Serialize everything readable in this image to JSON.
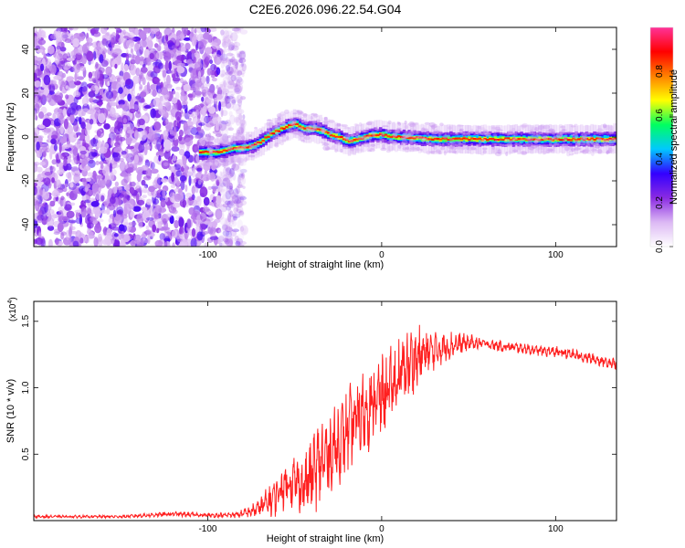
{
  "title": "C2E6.2026.096.22.54.G04",
  "chart_data": [
    {
      "type": "heatmap",
      "xlabel": "Height of straight line (km)",
      "ylabel": "Frequency (Hz)",
      "xlim": [
        -200,
        135
      ],
      "ylim": [
        -50,
        50
      ],
      "xticks": [
        -100,
        0,
        100
      ],
      "xtick_labels": [
        "-100",
        "0",
        "100"
      ],
      "yticks": [
        -40,
        -20,
        0,
        20,
        40
      ],
      "ytick_labels": [
        "-40",
        "-20",
        "0",
        "20",
        "40"
      ],
      "colorbar": {
        "label": "Normalized spectral amplitude",
        "range": [
          0,
          1
        ],
        "ticks": [
          0.0,
          0.2,
          0.4,
          0.6,
          0.8
        ],
        "tick_labels": [
          "0.0",
          "0.2",
          "0.4",
          "0.6",
          "0.8"
        ],
        "colormap": [
          "#ffffff",
          "#dcb8f4",
          "#8a2be2",
          "#3300ff",
          "#00c8ff",
          "#00ff60",
          "#ffff00",
          "#ff8000",
          "#ff0000",
          "#ff3399"
        ]
      },
      "noise_region_x": [
        -200,
        -85
      ],
      "ridge": {
        "x": [
          -105,
          -100,
          -95,
          -90,
          -85,
          -80,
          -75,
          -70,
          -65,
          -60,
          -55,
          -50,
          -45,
          -40,
          -35,
          -30,
          -25,
          -20,
          -15,
          -10,
          -5,
          0,
          5,
          10,
          20,
          30,
          40,
          60,
          80,
          100,
          120,
          135
        ],
        "y": [
          -7,
          -7,
          -7,
          -6,
          -5,
          -5,
          -4,
          -2,
          1,
          3,
          5,
          6,
          4,
          4,
          3,
          1,
          0,
          -2,
          -1,
          0,
          1,
          1,
          0,
          0,
          -0.5,
          -1,
          -1,
          -1,
          -1,
          -1,
          -1,
          -1
        ]
      }
    },
    {
      "type": "line",
      "xlabel": "Height of straight line (km)",
      "ylabel": "SNR (10 * v/v)",
      "y_multiplier": "(x10",
      "y_multiplier_exp": "4",
      "y_multiplier_close": ")",
      "xlim": [
        -200,
        135
      ],
      "ylim": [
        0,
        1.65
      ],
      "xticks": [
        -100,
        0,
        100
      ],
      "xtick_labels": [
        "-100",
        "0",
        "100"
      ],
      "yticks": [
        0.5,
        1.0,
        1.5
      ],
      "ytick_labels": [
        "0.5",
        "1.0",
        "1.5"
      ],
      "series": [
        {
          "color": "#ff2020",
          "envelope": {
            "x": [
              -200,
              -150,
              -120,
              -100,
              -90,
              -80,
              -75,
              -70,
              -65,
              -60,
              -55,
              -50,
              -45,
              -40,
              -35,
              -30,
              -25,
              -20,
              -15,
              -10,
              -5,
              0,
              5,
              10,
              15,
              20,
              25,
              30,
              35,
              40,
              50,
              60,
              70,
              80,
              90,
              100,
              110,
              120,
              135
            ],
            "mean": [
              0.03,
              0.03,
              0.05,
              0.04,
              0.04,
              0.05,
              0.07,
              0.1,
              0.14,
              0.2,
              0.28,
              0.3,
              0.25,
              0.35,
              0.45,
              0.5,
              0.58,
              0.66,
              0.75,
              0.82,
              0.88,
              0.94,
              1.0,
              1.08,
              1.18,
              1.22,
              1.26,
              1.28,
              1.3,
              1.32,
              1.34,
              1.33,
              1.31,
              1.3,
              1.28,
              1.27,
              1.25,
              1.22,
              1.18
            ],
            "spread": [
              0.01,
              0.01,
              0.02,
              0.015,
              0.02,
              0.03,
              0.05,
              0.08,
              0.12,
              0.15,
              0.18,
              0.2,
              0.2,
              0.3,
              0.32,
              0.32,
              0.3,
              0.3,
              0.32,
              0.32,
              0.3,
              0.3,
              0.28,
              0.28,
              0.28,
              0.25,
              0.2,
              0.16,
              0.12,
              0.1,
              0.06,
              0.04,
              0.04,
              0.04,
              0.04,
              0.04,
              0.04,
              0.04,
              0.04
            ]
          }
        }
      ]
    }
  ]
}
